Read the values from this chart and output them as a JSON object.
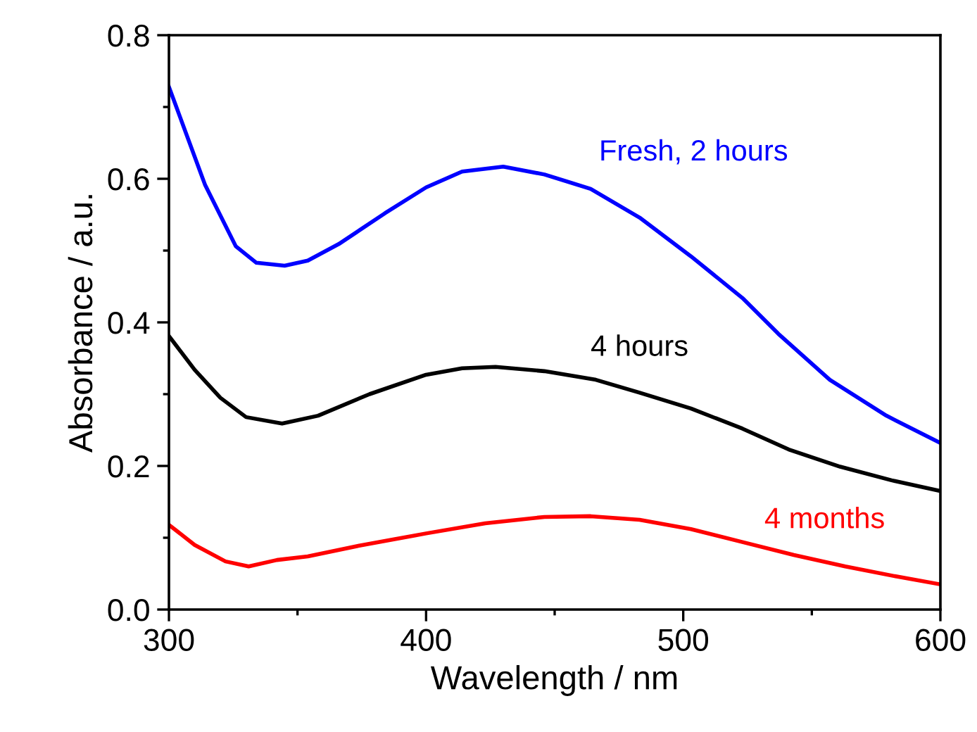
{
  "chart_data": {
    "type": "line",
    "xlabel": "Wavelength / nm",
    "ylabel": "Absorbance / a.u.",
    "xlim": [
      300,
      600
    ],
    "xticks": [
      300,
      400,
      500,
      600
    ],
    "ylim": [
      0.0,
      0.8
    ],
    "yticks": [
      {
        "value": 0.0,
        "label": "0.0"
      },
      {
        "value": 0.2,
        "label": "0.2"
      },
      {
        "value": 0.4,
        "label": "0.4"
      },
      {
        "value": 0.6,
        "label": "0.6"
      },
      {
        "value": 0.8,
        "label": "0.8"
      }
    ],
    "grid": false,
    "legend": false,
    "marker": "none",
    "line_style": "solid",
    "series": [
      {
        "name": "Fresh, 2 hours",
        "color": "#0000ff",
        "x": [
          300,
          314,
          326,
          334,
          345,
          354,
          366,
          384,
          400,
          414,
          430,
          446,
          464,
          483,
          503,
          523,
          537,
          557,
          579,
          600
        ],
        "values": [
          0.728,
          0.592,
          0.506,
          0.483,
          0.479,
          0.486,
          0.509,
          0.552,
          0.588,
          0.61,
          0.617,
          0.606,
          0.586,
          0.546,
          0.492,
          0.434,
          0.384,
          0.32,
          0.27,
          0.232
        ]
      },
      {
        "name": "4 hours",
        "color": "#000000",
        "x": [
          300,
          310,
          320,
          330,
          344,
          358,
          378,
          400,
          414,
          427,
          446,
          466,
          483,
          503,
          523,
          541,
          561,
          581,
          600
        ],
        "values": [
          0.381,
          0.334,
          0.295,
          0.268,
          0.259,
          0.27,
          0.3,
          0.327,
          0.336,
          0.338,
          0.332,
          0.32,
          0.302,
          0.28,
          0.252,
          0.223,
          0.199,
          0.18,
          0.165
        ]
      },
      {
        "name": "4 months",
        "color": "#ff0000",
        "x": [
          300,
          310,
          322,
          331,
          342,
          354,
          374,
          400,
          423,
          446,
          464,
          483,
          503,
          523,
          543,
          563,
          583,
          600
        ],
        "values": [
          0.118,
          0.09,
          0.067,
          0.06,
          0.069,
          0.074,
          0.089,
          0.106,
          0.12,
          0.129,
          0.13,
          0.125,
          0.112,
          0.094,
          0.076,
          0.06,
          0.046,
          0.035
        ]
      }
    ]
  }
}
